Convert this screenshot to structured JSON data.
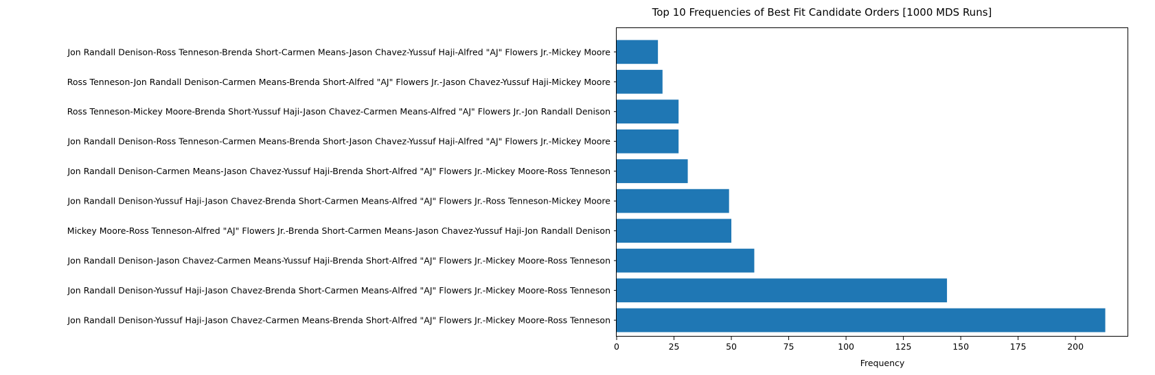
{
  "chart_data": {
    "type": "bar",
    "orientation": "horizontal",
    "title": "Top 10 Frequencies of Best Fit Candidate Orders [1000 MDS Runs]",
    "xlabel": "Frequency",
    "ylabel": "",
    "xlim": [
      0,
      223
    ],
    "xticks": [
      0,
      25,
      50,
      75,
      100,
      125,
      150,
      175,
      200
    ],
    "grid": false,
    "legend": "none",
    "bar_color": "#1f77b4",
    "categories": [
      "Jon Randall Denison-Yussuf Haji-Jason Chavez-Carmen Means-Brenda Short-Alfred \"AJ\" Flowers Jr.-Mickey Moore-Ross Tenneson",
      "Jon Randall Denison-Yussuf Haji-Jason Chavez-Brenda Short-Carmen Means-Alfred \"AJ\" Flowers Jr.-Mickey Moore-Ross Tenneson",
      "Jon Randall Denison-Jason Chavez-Carmen Means-Yussuf Haji-Brenda Short-Alfred \"AJ\" Flowers Jr.-Mickey Moore-Ross Tenneson",
      "Mickey Moore-Ross Tenneson-Alfred \"AJ\" Flowers Jr.-Brenda Short-Carmen Means-Jason Chavez-Yussuf Haji-Jon Randall Denison",
      "Jon Randall Denison-Yussuf Haji-Jason Chavez-Brenda Short-Carmen Means-Alfred \"AJ\" Flowers Jr.-Ross Tenneson-Mickey Moore",
      "Jon Randall Denison-Carmen Means-Jason Chavez-Yussuf Haji-Brenda Short-Alfred \"AJ\" Flowers Jr.-Mickey Moore-Ross Tenneson",
      "Jon Randall Denison-Ross Tenneson-Carmen Means-Brenda Short-Jason Chavez-Yussuf Haji-Alfred \"AJ\" Flowers Jr.-Mickey Moore",
      "Ross Tenneson-Mickey Moore-Brenda Short-Yussuf Haji-Jason Chavez-Carmen Means-Alfred \"AJ\" Flowers Jr.-Jon Randall Denison",
      "Ross Tenneson-Jon Randall Denison-Carmen Means-Brenda Short-Alfred \"AJ\" Flowers Jr.-Jason Chavez-Yussuf Haji-Mickey Moore",
      "Jon Randall Denison-Ross Tenneson-Brenda Short-Carmen Means-Jason Chavez-Yussuf Haji-Alfred \"AJ\" Flowers Jr.-Mickey Moore"
    ],
    "values": [
      213,
      144,
      60,
      50,
      49,
      31,
      27,
      27,
      20,
      18
    ]
  }
}
